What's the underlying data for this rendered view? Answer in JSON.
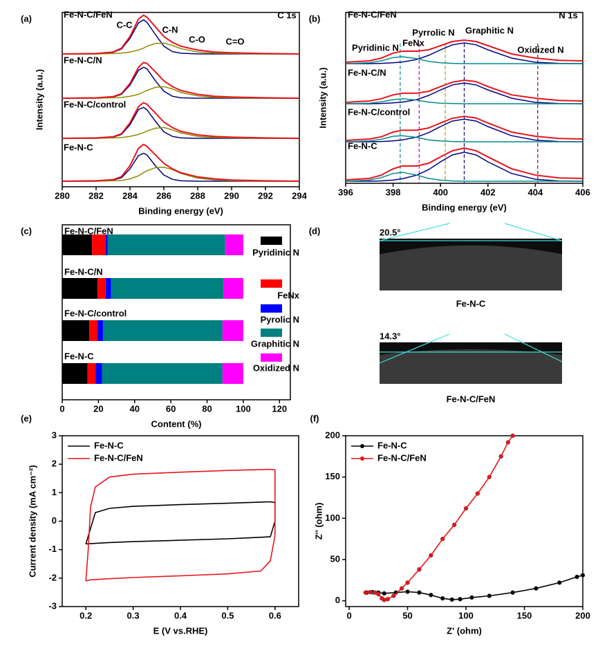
{
  "chart_data": [
    {
      "type": "spectra",
      "panel": "(a)",
      "title": "C 1s",
      "xlabel": "Binding energy (eV)",
      "ylabel": "Intensity (a.u.)",
      "xlim": [
        280,
        294
      ],
      "xticks": [
        280,
        282,
        284,
        286,
        288,
        290,
        292,
        294
      ],
      "x": [
        280,
        282,
        283,
        283.5,
        284,
        284.5,
        284.8,
        285,
        285.5,
        286,
        286.5,
        287,
        288,
        289,
        290,
        292,
        294
      ],
      "envelope_color": "#e8141b",
      "component_colors": [
        "#00007f",
        "#8b8b00"
      ],
      "peak_labels": [
        "C-C",
        "C-N",
        "C-O",
        "C=O"
      ],
      "samples": [
        {
          "name": "Fe-N-C/FeN",
          "envelope": [
            0,
            0.01,
            0.05,
            0.15,
            0.45,
            0.9,
            1.0,
            0.95,
            0.7,
            0.45,
            0.3,
            0.2,
            0.1,
            0.05,
            0.03,
            0.01,
            0
          ],
          "components": [
            [
              0,
              0,
              0.04,
              0.13,
              0.4,
              0.8,
              0.88,
              0.82,
              0.5,
              0.2,
              0.06,
              0.02,
              0,
              0,
              0,
              0,
              0
            ],
            [
              0,
              0,
              0.01,
              0.02,
              0.05,
              0.1,
              0.15,
              0.2,
              0.27,
              0.28,
              0.22,
              0.14,
              0.05,
              0.02,
              0.01,
              0,
              0
            ]
          ]
        },
        {
          "name": "Fe-N-C/N",
          "envelope": [
            0,
            0.01,
            0.04,
            0.12,
            0.38,
            0.8,
            0.92,
            0.9,
            0.68,
            0.45,
            0.3,
            0.2,
            0.1,
            0.05,
            0.03,
            0.01,
            0
          ],
          "components": [
            [
              0,
              0,
              0.03,
              0.1,
              0.34,
              0.72,
              0.8,
              0.76,
              0.45,
              0.18,
              0.05,
              0.01,
              0,
              0,
              0,
              0,
              0
            ],
            [
              0,
              0,
              0.01,
              0.02,
              0.05,
              0.1,
              0.16,
              0.2,
              0.28,
              0.3,
              0.24,
              0.15,
              0.06,
              0.02,
              0.01,
              0,
              0
            ]
          ]
        },
        {
          "name": "Fe-N-C/control",
          "envelope": [
            0,
            0.01,
            0.04,
            0.12,
            0.4,
            0.82,
            0.92,
            0.88,
            0.65,
            0.42,
            0.28,
            0.18,
            0.09,
            0.05,
            0.03,
            0.01,
            0
          ],
          "components": [
            [
              0,
              0,
              0.03,
              0.1,
              0.35,
              0.74,
              0.8,
              0.74,
              0.44,
              0.17,
              0.05,
              0.01,
              0,
              0,
              0,
              0,
              0
            ],
            [
              0,
              0,
              0.01,
              0.02,
              0.05,
              0.1,
              0.15,
              0.19,
              0.26,
              0.28,
              0.22,
              0.14,
              0.05,
              0.02,
              0.01,
              0,
              0
            ]
          ]
        },
        {
          "name": "Fe-N-C",
          "envelope": [
            0,
            0.01,
            0.04,
            0.12,
            0.4,
            0.85,
            0.95,
            0.9,
            0.68,
            0.46,
            0.32,
            0.22,
            0.11,
            0.06,
            0.03,
            0.01,
            0
          ],
          "components": [
            [
              0,
              0,
              0.03,
              0.09,
              0.32,
              0.66,
              0.72,
              0.68,
              0.4,
              0.16,
              0.05,
              0.01,
              0,
              0,
              0,
              0,
              0
            ],
            [
              0,
              0,
              0.01,
              0.02,
              0.06,
              0.14,
              0.22,
              0.27,
              0.35,
              0.36,
              0.3,
              0.2,
              0.08,
              0.03,
              0.01,
              0,
              0
            ]
          ]
        }
      ]
    },
    {
      "type": "spectra",
      "panel": "(b)",
      "title": "N 1s",
      "xlabel": "Binding energy (eV)",
      "ylabel": "Intensity (a.u.)",
      "xlim": [
        396,
        406
      ],
      "xticks": [
        396,
        398,
        400,
        402,
        404,
        406
      ],
      "x": [
        396,
        397,
        397.5,
        398,
        398.4,
        399,
        399.5,
        400,
        400.5,
        401,
        401.5,
        402,
        403,
        404,
        405,
        406
      ],
      "envelope_color": "#e8141b",
      "component_colors": [
        "#00007f",
        "#008b8b"
      ],
      "peak_labels": [
        "Pyridinic N",
        "FeNx",
        "Pyrrolic N",
        "Graphitic N",
        "Oxidized N"
      ],
      "reference_lines": [
        {
          "value": 398.3,
          "color": "#008b8b"
        },
        {
          "value": 399.1,
          "color": "#d000d0"
        },
        {
          "value": 400.2,
          "color": "#a0a000"
        },
        {
          "value": 401.0,
          "color": "#00007f"
        },
        {
          "value": 404.1,
          "color": "#800040"
        }
      ],
      "samples": [
        {
          "name": "Fe-N-C/FeN",
          "envelope": [
            0.05,
            0.1,
            0.2,
            0.38,
            0.45,
            0.45,
            0.5,
            0.65,
            0.8,
            0.85,
            0.8,
            0.65,
            0.35,
            0.2,
            0.12,
            0.1
          ],
          "components": [
            [
              0,
              0,
              0.01,
              0.03,
              0.06,
              0.15,
              0.3,
              0.5,
              0.68,
              0.75,
              0.68,
              0.5,
              0.2,
              0.05,
              0.01,
              0
            ],
            [
              0,
              0.03,
              0.1,
              0.22,
              0.25,
              0.18,
              0.08,
              0.03,
              0.01,
              0,
              0,
              0,
              0,
              0,
              0,
              0
            ]
          ]
        },
        {
          "name": "Fe-N-C/N",
          "envelope": [
            0.05,
            0.1,
            0.18,
            0.32,
            0.38,
            0.38,
            0.45,
            0.62,
            0.78,
            0.85,
            0.8,
            0.62,
            0.32,
            0.2,
            0.12,
            0.1
          ],
          "components": [
            [
              0,
              0,
              0.01,
              0.03,
              0.06,
              0.15,
              0.3,
              0.5,
              0.68,
              0.75,
              0.68,
              0.5,
              0.2,
              0.05,
              0.01,
              0
            ],
            [
              0,
              0.02,
              0.07,
              0.15,
              0.18,
              0.13,
              0.06,
              0.02,
              0.01,
              0,
              0,
              0,
              0,
              0,
              0,
              0
            ]
          ]
        },
        {
          "name": "Fe-N-C/control",
          "envelope": [
            0.05,
            0.1,
            0.18,
            0.35,
            0.42,
            0.42,
            0.5,
            0.68,
            0.85,
            0.92,
            0.86,
            0.68,
            0.35,
            0.2,
            0.12,
            0.1
          ],
          "components": [
            [
              0,
              0,
              0.01,
              0.03,
              0.07,
              0.17,
              0.33,
              0.55,
              0.75,
              0.82,
              0.75,
              0.55,
              0.22,
              0.06,
              0.01,
              0
            ],
            [
              0,
              0.03,
              0.09,
              0.2,
              0.22,
              0.16,
              0.07,
              0.03,
              0.01,
              0,
              0,
              0,
              0,
              0,
              0,
              0
            ]
          ]
        },
        {
          "name": "Fe-N-C",
          "envelope": [
            0.05,
            0.1,
            0.22,
            0.45,
            0.55,
            0.55,
            0.65,
            0.88,
            1.1,
            1.2,
            1.1,
            0.88,
            0.45,
            0.22,
            0.12,
            0.1
          ],
          "components": [
            [
              0,
              0,
              0.01,
              0.04,
              0.09,
              0.22,
              0.42,
              0.7,
              0.95,
              1.05,
              0.95,
              0.7,
              0.28,
              0.07,
              0.01,
              0
            ],
            [
              0,
              0.04,
              0.13,
              0.28,
              0.32,
              0.22,
              0.1,
              0.04,
              0.01,
              0,
              0,
              0,
              0,
              0,
              0,
              0
            ]
          ]
        }
      ]
    },
    {
      "type": "bar",
      "panel": "(c)",
      "orientation": "horizontal",
      "stacked": true,
      "xlabel": "Content (%)",
      "xlim": [
        0,
        126
      ],
      "xticks": [
        0,
        20,
        40,
        60,
        80,
        100,
        120
      ],
      "categories": [
        "Fe-N-C/FeN",
        "Fe-N-C/N",
        "Fe-N-C/control",
        "Fe-N-C"
      ],
      "series": [
        {
          "name": "Pyridinic N",
          "color": "#000000",
          "values": [
            16.5,
            19.5,
            15,
            14
          ]
        },
        {
          "name": "FeNx",
          "color": "#ff0000",
          "values": [
            7.5,
            4.5,
            4.5,
            4.5
          ]
        },
        {
          "name": "Pyrolic N",
          "color": "#0000ff",
          "values": [
            1,
            3,
            3,
            3.5
          ]
        },
        {
          "name": "Graphitic N",
          "color": "#008080",
          "values": [
            65,
            62,
            66,
            66.5
          ]
        },
        {
          "name": "Oxidized N",
          "color": "#ff00ff",
          "values": [
            10,
            11,
            11.5,
            11.5
          ]
        }
      ]
    },
    {
      "type": "images",
      "panel": "(d)",
      "items": [
        {
          "angle": "20.5°",
          "label": "Fe-N-C"
        },
        {
          "angle": "14.3°",
          "label": "Fe-N-C/FeN"
        }
      ]
    },
    {
      "type": "line",
      "panel": "(e)",
      "xlabel": "E (V vs.RHE)",
      "ylabel": "Current density (mA cm⁻²)",
      "xlim": [
        0.15,
        0.65
      ],
      "xticks": [
        0.2,
        0.3,
        0.4,
        0.5,
        0.6
      ],
      "ylim": [
        -3,
        3
      ],
      "yticks": [
        -3,
        -2,
        -1,
        0,
        1,
        2,
        3
      ],
      "legend": "upper left",
      "series": [
        {
          "name": "Fe-N-C",
          "color": "#000000",
          "x": [
            0.2,
            0.22,
            0.25,
            0.3,
            0.4,
            0.5,
            0.59,
            0.6,
            0.6,
            0.59,
            0.55,
            0.5,
            0.4,
            0.3,
            0.25,
            0.2
          ],
          "values": [
            -0.8,
            0.3,
            0.45,
            0.52,
            0.58,
            0.63,
            0.68,
            0.65,
            0.0,
            -0.55,
            -0.58,
            -0.62,
            -0.67,
            -0.72,
            -0.75,
            -0.8
          ]
        },
        {
          "name": "Fe-N-C/FeN",
          "color": "#e8141b",
          "x": [
            0.2,
            0.205,
            0.21,
            0.22,
            0.25,
            0.3,
            0.4,
            0.5,
            0.59,
            0.6,
            0.6,
            0.59,
            0.57,
            0.5,
            0.4,
            0.3,
            0.25,
            0.21,
            0.2
          ],
          "values": [
            -2.1,
            -1.0,
            0.5,
            1.2,
            1.55,
            1.65,
            1.72,
            1.78,
            1.82,
            1.8,
            -0.5,
            -1.4,
            -1.75,
            -1.85,
            -1.92,
            -1.98,
            -2.02,
            -2.06,
            -2.1
          ]
        }
      ]
    },
    {
      "type": "line",
      "panel": "(f)",
      "marker": "circle",
      "xlabel": "Z' (ohm)",
      "ylabel": "Z'' (ohm)",
      "xlim": [
        -3,
        200
      ],
      "xticks": [
        0,
        50,
        100,
        150,
        200
      ],
      "ylim": [
        -7,
        200
      ],
      "yticks": [
        0,
        50,
        100,
        150,
        200
      ],
      "legend": "upper left",
      "series": [
        {
          "name": "Fe-N-C",
          "color": "#000000",
          "x": [
            15,
            20,
            25,
            30,
            40,
            50,
            60,
            70,
            80,
            88,
            95,
            105,
            120,
            140,
            160,
            180,
            195,
            200
          ],
          "values": [
            10,
            10.5,
            10,
            9,
            10,
            11,
            10,
            7,
            3,
            1.5,
            2,
            4,
            6,
            10,
            15,
            22,
            29,
            31
          ]
        },
        {
          "name": "Fe-N-C/FeN",
          "color": "#e8141b",
          "x": [
            14,
            18,
            22,
            25,
            28,
            30,
            33,
            38,
            45,
            50,
            60,
            70,
            80,
            90,
            100,
            110,
            120,
            130,
            136,
            140
          ],
          "values": [
            10,
            10.5,
            10,
            8,
            3,
            1,
            2,
            6,
            15,
            22,
            38,
            55,
            75,
            92,
            112,
            130,
            150,
            175,
            192,
            200
          ]
        }
      ]
    }
  ]
}
